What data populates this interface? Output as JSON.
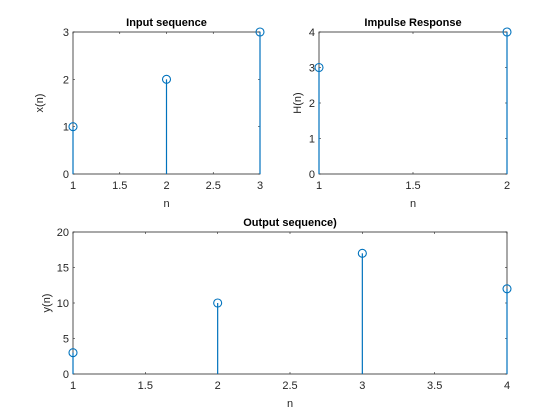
{
  "chart_data": [
    {
      "type": "stem",
      "title": "Input sequence",
      "xlabel": "n",
      "ylabel": "x(n)",
      "xlim": [
        1,
        3
      ],
      "ylim": [
        0,
        3
      ],
      "xticks": [
        "1",
        "1.5",
        "2",
        "2.5",
        "3"
      ],
      "yticks": [
        "0",
        "1",
        "2",
        "3"
      ],
      "series": [
        {
          "x": [
            1,
            2,
            3
          ],
          "y": [
            1,
            2,
            3
          ]
        }
      ],
      "color": "#0072BD"
    },
    {
      "type": "stem",
      "title": "Impulse Response",
      "xlabel": "n",
      "ylabel": "H(n)",
      "xlim": [
        1,
        2
      ],
      "ylim": [
        0,
        4
      ],
      "xticks": [
        "1",
        "1.5",
        "2"
      ],
      "yticks": [
        "0",
        "1",
        "2",
        "3",
        "4"
      ],
      "series": [
        {
          "x": [
            1,
            2
          ],
          "y": [
            3,
            4
          ]
        }
      ],
      "color": "#0072BD"
    },
    {
      "type": "stem",
      "title": "Output sequence)",
      "xlabel": "n",
      "ylabel": "y(n)",
      "xlim": [
        1,
        4
      ],
      "ylim": [
        0,
        20
      ],
      "xticks": [
        "1",
        "1.5",
        "2",
        "2.5",
        "3",
        "3.5",
        "4"
      ],
      "yticks": [
        "0",
        "5",
        "10",
        "15",
        "20"
      ],
      "series": [
        {
          "x": [
            1,
            2,
            3,
            4
          ],
          "y": [
            3,
            10,
            17,
            12
          ]
        }
      ],
      "color": "#0072BD"
    }
  ]
}
